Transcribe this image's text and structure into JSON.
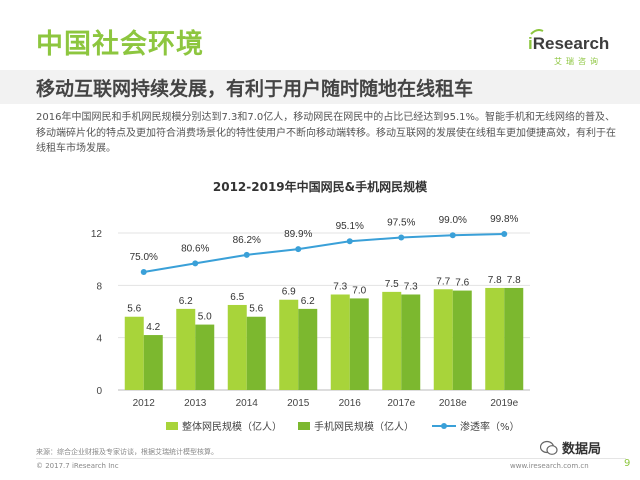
{
  "header": {
    "title": "中国社会环境",
    "logo_main": "Research",
    "logo_i": "i",
    "logo_sub": "艾瑞咨询"
  },
  "subtitle": "移动互联网持续发展，有利于用户随时随地在线租车",
  "body_text": "2016年中国网民和手机网民规模分别达到7.3和7.0亿人，移动网民在网民中的占比已经达到95.1%。智能手机和无线网络的普及、移动端碎片化的特点及更加符合消费场景化的特性使用户不断向移动端转移。移动互联网的发展使在线租车更加便捷高效，有利于在线租车市场发展。",
  "chart_data": {
    "type": "bar",
    "title": "2012-2019年中国网民&手机网民规模",
    "categories": [
      "2012",
      "2013",
      "2014",
      "2015",
      "2016",
      "2017e",
      "2018e",
      "2019e"
    ],
    "series": [
      {
        "name": "整体网民规模（亿人）",
        "type": "bar",
        "color": "#a8d43a",
        "values": [
          5.6,
          6.2,
          6.5,
          6.9,
          7.3,
          7.5,
          7.7,
          7.8
        ],
        "labels": [
          "5.6",
          "6.2",
          "6.5",
          "6.9",
          "7.3",
          "7.5",
          "7.7",
          "7.8"
        ]
      },
      {
        "name": "手机网民规模（亿人）",
        "type": "bar",
        "color": "#7cb82f",
        "values": [
          4.2,
          5.0,
          5.6,
          6.2,
          7.0,
          7.3,
          7.6,
          7.8
        ],
        "labels": [
          "4.2",
          "5.0",
          "5.6",
          "6.2",
          "7.0",
          "7.3",
          "7.6",
          "7.8"
        ]
      },
      {
        "name": "渗透率（%）",
        "type": "line",
        "color": "#3aa0d8",
        "values": [
          75.0,
          80.6,
          86.2,
          89.9,
          95.1,
          97.5,
          99.0,
          99.8
        ],
        "labels": [
          "75.0%",
          "80.6%",
          "86.2%",
          "89.9%",
          "95.1%",
          "97.5%",
          "99.0%",
          "99.8%"
        ]
      }
    ],
    "yticks": [
      "0",
      "4",
      "8",
      "12"
    ],
    "ylim": [
      0,
      12
    ],
    "xlabel": "",
    "ylabel": "",
    "legend_position": "bottom"
  },
  "footer": {
    "source": "来源：综合企业财报及专家访谈，根据艾瑞统计模型核算。",
    "copyright": "© 2017.7 iResearch Inc",
    "site": "www.iresearch.com.cn",
    "page": "9"
  },
  "watermark": "数据局"
}
